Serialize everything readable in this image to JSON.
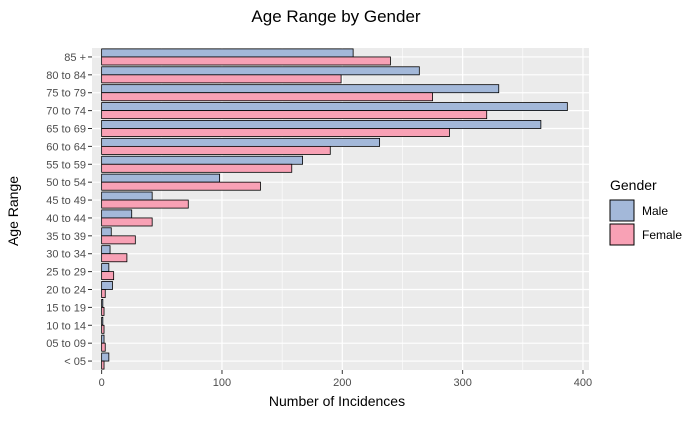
{
  "chart_data": {
    "type": "bar",
    "orientation": "horizontal",
    "title": "Age Range by Gender",
    "xlabel": "Number of Incidences",
    "ylabel": "Age Range",
    "xlim": [
      -8,
      405
    ],
    "xticks": [
      0,
      100,
      200,
      300,
      400
    ],
    "grid": true,
    "legend": {
      "title": "Gender",
      "placement": "right"
    },
    "categories": [
      "< 05",
      "05 to 09",
      "10 to 14",
      "15 to 19",
      "20 to 24",
      "25 to 29",
      "30 to 34",
      "35 to 39",
      "40 to 44",
      "45 to 49",
      "50 to 54",
      "55 to 59",
      "60 to 64",
      "65 to 69",
      "70 to 74",
      "75 to 79",
      "80 to 84",
      "85 +"
    ],
    "series": [
      {
        "name": "Male",
        "color": "#a3b8d9",
        "values": [
          6,
          2,
          1,
          1,
          9,
          6,
          7,
          8,
          25,
          42,
          98,
          167,
          231,
          365,
          387,
          330,
          264,
          209
        ]
      },
      {
        "name": "Female",
        "color": "#f8a1b5",
        "values": [
          2,
          3,
          2,
          2,
          3,
          10,
          21,
          28,
          42,
          72,
          132,
          158,
          190,
          289,
          320,
          275,
          199,
          240
        ]
      }
    ]
  }
}
